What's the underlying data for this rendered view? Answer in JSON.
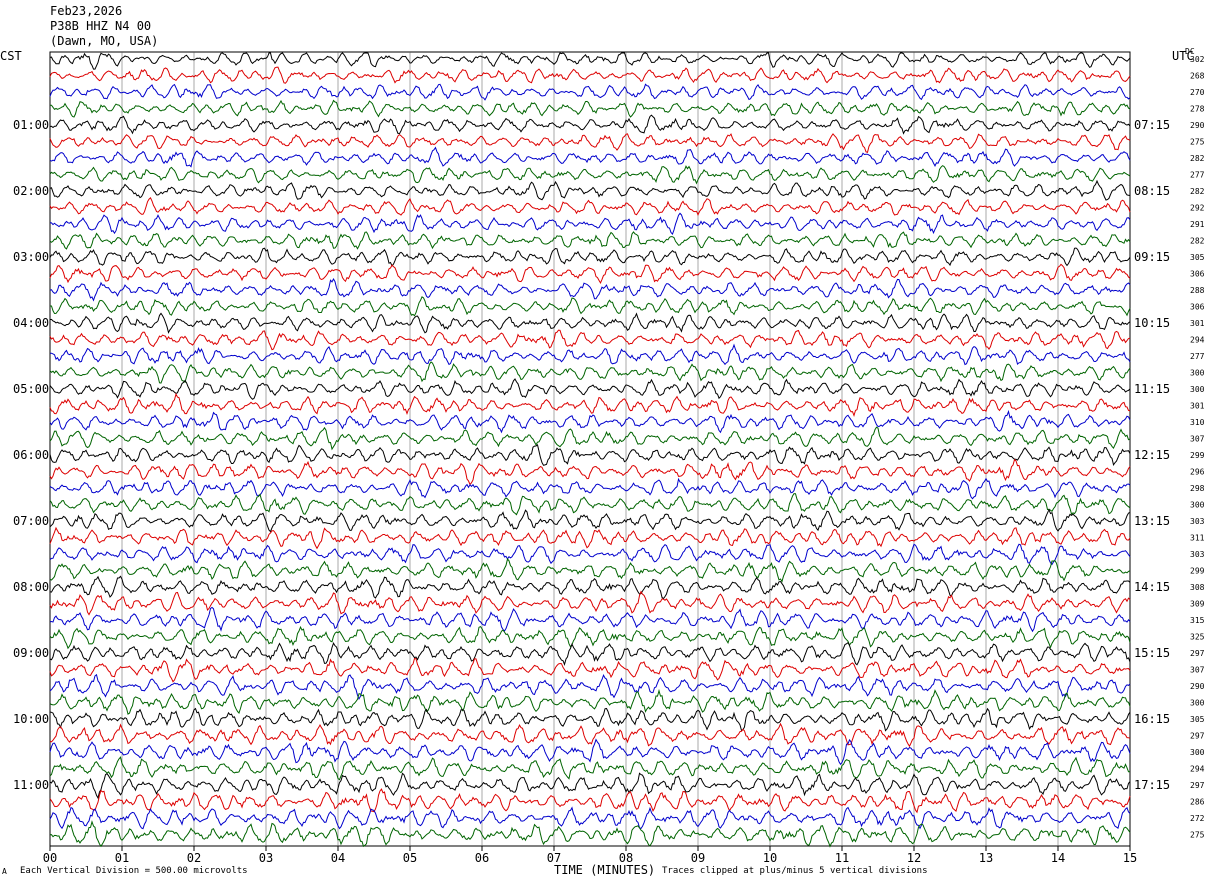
{
  "header": {
    "date": "Feb23,2026",
    "station": "P38B HHZ N4 00",
    "location": "(Dawn, MO, USA)"
  },
  "left_axis_title": "CST",
  "right_axis_title": "UTC",
  "dc_title": "DC",
  "footer": {
    "scale_note": "Each Vertical Division =  500.00 microvolts",
    "xlabel": "TIME (MINUTES)",
    "clip_note": "Traces clipped at plus/minus 5 vertical divisions",
    "corner_mark": "A"
  },
  "colors": {
    "trace_cycle": [
      "#000000",
      "#dd0000",
      "#0000cc",
      "#006400"
    ],
    "grid": "#000000"
  },
  "chart_data": {
    "type": "line",
    "description_type": "helicorder",
    "xlabel": "TIME (MINUTES)",
    "xlim": [
      0,
      15
    ],
    "x_ticks": [
      "00",
      "01",
      "02",
      "03",
      "04",
      "05",
      "06",
      "07",
      "08",
      "09",
      "10",
      "11",
      "12",
      "13",
      "14",
      "15"
    ],
    "traces_per_hour": 4,
    "trace_count": 48,
    "left_time_labels": [
      {
        "row": 4,
        "label": "01:00"
      },
      {
        "row": 8,
        "label": "02:00"
      },
      {
        "row": 12,
        "label": "03:00"
      },
      {
        "row": 16,
        "label": "04:00"
      },
      {
        "row": 20,
        "label": "05:00"
      },
      {
        "row": 24,
        "label": "06:00"
      },
      {
        "row": 28,
        "label": "07:00"
      },
      {
        "row": 32,
        "label": "08:00"
      },
      {
        "row": 36,
        "label": "09:00"
      },
      {
        "row": 40,
        "label": "10:00"
      },
      {
        "row": 44,
        "label": "11:00"
      }
    ],
    "right_time_labels": [
      {
        "row": 4,
        "label": "07:15"
      },
      {
        "row": 8,
        "label": "08:15"
      },
      {
        "row": 12,
        "label": "09:15"
      },
      {
        "row": 16,
        "label": "10:15"
      },
      {
        "row": 20,
        "label": "11:15"
      },
      {
        "row": 24,
        "label": "12:15"
      },
      {
        "row": 28,
        "label": "13:15"
      },
      {
        "row": 32,
        "label": "14:15"
      },
      {
        "row": 36,
        "label": "15:15"
      },
      {
        "row": 40,
        "label": "16:15"
      },
      {
        "row": 44,
        "label": "17:15"
      }
    ],
    "dc_offsets": [
      302,
      268,
      270,
      278,
      290,
      275,
      282,
      277,
      282,
      292,
      291,
      282,
      305,
      306,
      288,
      306,
      301,
      294,
      277,
      300,
      300,
      301,
      310,
      307,
      299,
      296,
      298,
      300,
      303,
      311,
      303,
      299,
      308,
      309,
      315,
      325,
      297,
      307,
      290,
      300,
      305,
      297,
      300,
      294,
      297,
      286,
      272,
      275
    ]
  }
}
